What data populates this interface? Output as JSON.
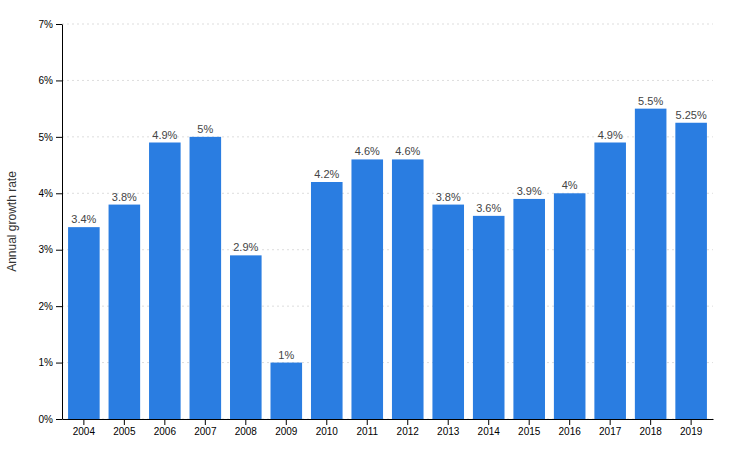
{
  "chart_data": {
    "type": "bar",
    "ylabel": "Annual growth rate",
    "categories": [
      "2004",
      "2005",
      "2006",
      "2007",
      "2008",
      "2009",
      "2010",
      "2011",
      "2012",
      "2013",
      "2014",
      "2015",
      "2016",
      "2017",
      "2018",
      "2019"
    ],
    "values": [
      3.4,
      3.8,
      4.9,
      5.0,
      2.9,
      1.0,
      4.2,
      4.6,
      4.6,
      3.8,
      3.6,
      3.9,
      4.0,
      4.9,
      5.5,
      5.25
    ],
    "value_labels": [
      "3.4%",
      "3.8%",
      "4.9%",
      "5%",
      "2.9%",
      "1%",
      "4.2%",
      "4.6%",
      "4.6%",
      "3.8%",
      "3.6%",
      "3.9%",
      "4%",
      "4.9%",
      "5.5%",
      "5.25%"
    ],
    "data_labels": true,
    "color": "#2a7de1",
    "ylim": [
      0,
      7
    ],
    "yticks": [
      {
        "value": 0,
        "label": "0%"
      },
      {
        "value": 1,
        "label": "1%"
      },
      {
        "value": 2,
        "label": "2%"
      },
      {
        "value": 3,
        "label": "3%"
      },
      {
        "value": 4,
        "label": "4%"
      },
      {
        "value": 5,
        "label": "5%"
      },
      {
        "value": 6,
        "label": "6%"
      },
      {
        "value": 7,
        "label": "7%"
      }
    ],
    "grid": true
  }
}
